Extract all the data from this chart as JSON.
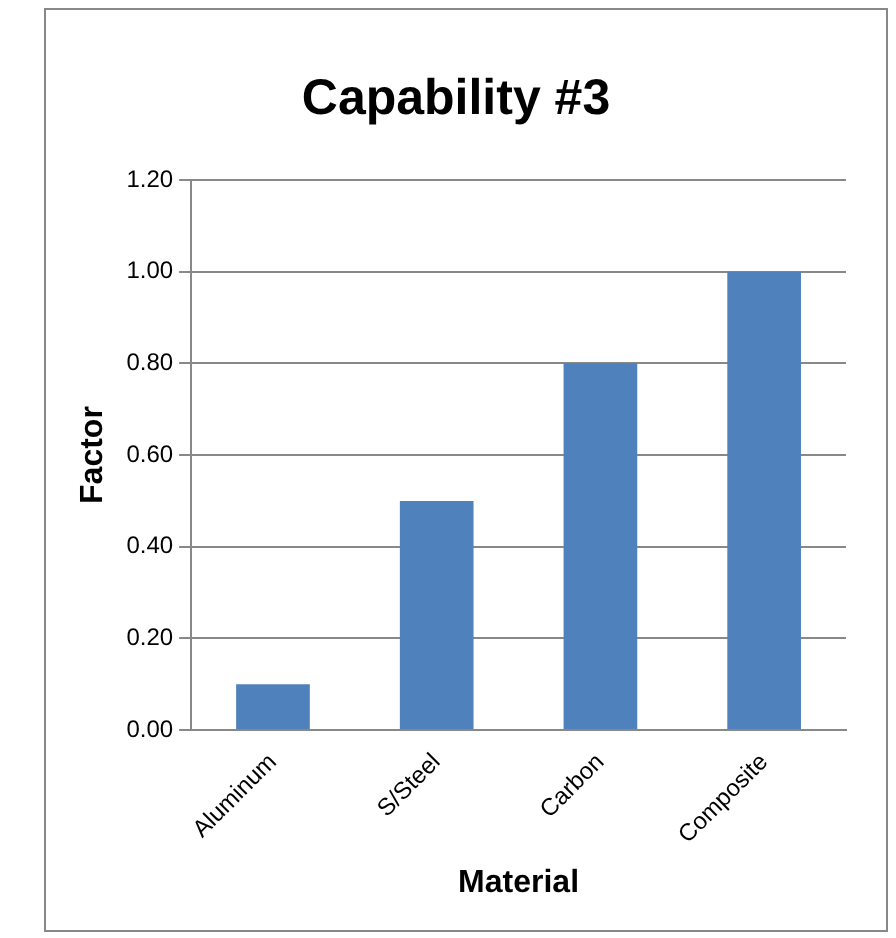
{
  "chart_data": {
    "type": "bar",
    "title": "Capability #3",
    "xlabel": "Material",
    "ylabel": "Factor",
    "categories": [
      "Aluminum",
      "S/Steel",
      "Carbon",
      "Composite"
    ],
    "values": [
      0.1,
      0.5,
      0.8,
      1.0
    ],
    "color": "#4f81bd",
    "ylim": [
      0,
      1.2
    ],
    "yticks": [
      {
        "value": 0,
        "label": "0.00"
      },
      {
        "value": 0.2,
        "label": "0.20"
      },
      {
        "value": 0.4,
        "label": "0.40"
      },
      {
        "value": 0.6,
        "label": "0.60"
      },
      {
        "value": 0.8,
        "label": "0.80"
      },
      {
        "value": 1.0,
        "label": "1.00"
      },
      {
        "value": 1.2,
        "label": "1.20"
      }
    ],
    "grid": "y",
    "legend": false
  }
}
